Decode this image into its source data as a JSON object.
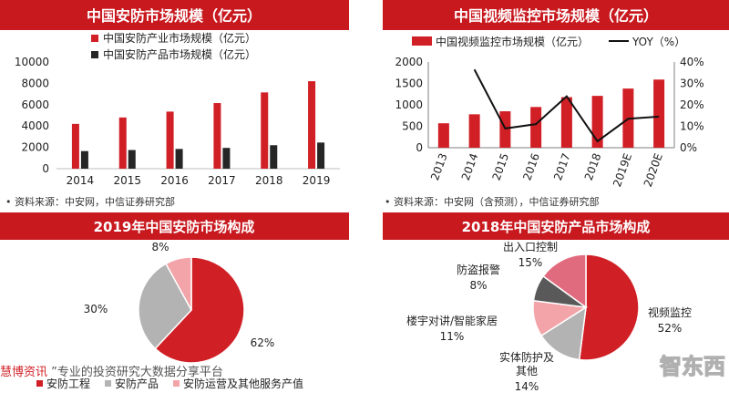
{
  "chart_data": [
    {
      "type": "bar",
      "title": "中国安防市场规模（亿元）",
      "categories": [
        "2014",
        "2015",
        "2016",
        "2017",
        "2018",
        "2019"
      ],
      "series": [
        {
          "name": "中国安防产业市场规模（亿元）",
          "values": [
            4200,
            4800,
            5350,
            6150,
            7150,
            8200
          ],
          "color": "#d11f26"
        },
        {
          "name": "中国安防产品市场规模（亿元）",
          "values": [
            1650,
            1750,
            1850,
            1950,
            2200,
            2450
          ],
          "color": "#262626"
        }
      ],
      "ylim": [
        0,
        10000
      ],
      "yticks": [
        "0",
        "2000",
        "4000",
        "6000",
        "8000",
        "10000"
      ],
      "grid": false,
      "legend": "top",
      "source": "•  资料来源：中安网，中信证券研究部"
    },
    {
      "type": "bar+line",
      "title": "中国视频监控市场规模（亿元）",
      "categories": [
        "2013",
        "2014",
        "2015",
        "2016",
        "2017",
        "2018",
        "2019E",
        "2020E"
      ],
      "bar_series": {
        "name": "中国视频监控市场规模（亿元）",
        "values": [
          570,
          780,
          850,
          950,
          1180,
          1210,
          1380,
          1590
        ],
        "color": "#d11f26"
      },
      "line_series": {
        "name": "YOY（%）",
        "values": [
          null,
          36.5,
          9,
          11,
          24,
          3,
          13.5,
          14.5
        ],
        "color": "#111111"
      },
      "ylim_left": [
        0,
        2000
      ],
      "yticks_left": [
        "0",
        "500",
        "1000",
        "1500",
        "2000"
      ],
      "ylim_right": [
        0,
        40
      ],
      "yticks_right": [
        "0%",
        "10%",
        "20%",
        "30%",
        "40%"
      ],
      "legend": "top",
      "source": "•  资料来源：中安网（含预测），中信证券研究部"
    },
    {
      "type": "pie",
      "title": "2019年中国安防市场构成",
      "slices": [
        {
          "label": "安防工程",
          "value": 62,
          "text": "62%",
          "color": "#d11f26"
        },
        {
          "label": "安防产品",
          "value": 30,
          "text": "30%",
          "color": "#b3b3b3"
        },
        {
          "label": "安防运营及其他服务产值",
          "value": 8,
          "text": "8%",
          "color": "#f2a4a8"
        }
      ],
      "legend": "bottom"
    },
    {
      "type": "pie",
      "title": "2018年中国安防产品市场构成",
      "slices": [
        {
          "label_lines": [
            "视频监控"
          ],
          "value": 52,
          "text": "52%",
          "color": "#d11f26"
        },
        {
          "label_lines": [
            "实体防护及",
            "其他"
          ],
          "value": 14,
          "text": "14%",
          "color": "#b3b3b3"
        },
        {
          "label_lines": [
            "楼宇对讲/智能家居"
          ],
          "value": 11,
          "text": "11%",
          "color": "#f2a4a8"
        },
        {
          "label_lines": [
            "防盗报警"
          ],
          "value": 8,
          "text": "8%",
          "color": "#595959"
        },
        {
          "label_lines": [
            "出入口控制"
          ],
          "value": 15,
          "text": "15%",
          "color": "#e06b7e"
        }
      ]
    }
  ],
  "overlay": {
    "watermark_left_red": "慧博资讯",
    "watermark_left_rest": "”专业的投资研究大数据分享平台",
    "logo_right": "智东西"
  },
  "colors": {
    "title_bar": "#c8191f",
    "accent": "#d11f26"
  }
}
